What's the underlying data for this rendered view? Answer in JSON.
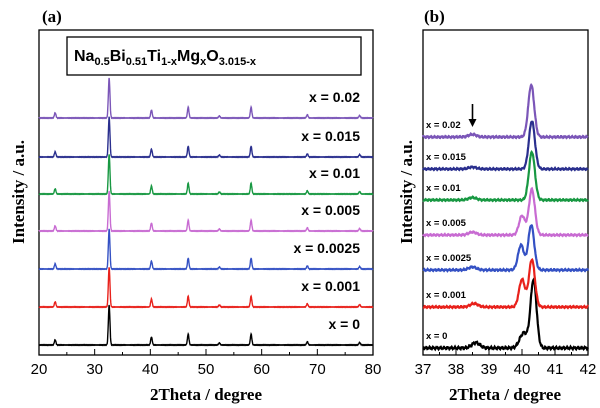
{
  "figure": {
    "formula": {
      "parts": [
        {
          "text": "Na",
          "sub": false
        },
        {
          "text": "0.5",
          "sub": true
        },
        {
          "text": "Bi",
          "sub": false
        },
        {
          "text": "0.51",
          "sub": true
        },
        {
          "text": "Ti",
          "sub": false
        },
        {
          "text": "1-x",
          "sub": true
        },
        {
          "text": "Mg",
          "sub": false
        },
        {
          "text": "x",
          "sub": true
        },
        {
          "text": "O",
          "sub": false
        },
        {
          "text": "3.015-x",
          "sub": true
        }
      ]
    }
  },
  "chart_data": [
    {
      "panel": "(a)",
      "type": "line",
      "xlabel": "2Theta / degree",
      "ylabel": "Intensity / a.u.",
      "xlim": [
        20,
        80
      ],
      "xticks": [
        20,
        30,
        40,
        50,
        60,
        70,
        80
      ],
      "y_ticks_shown": false,
      "grid": false,
      "baseline_profile": {
        "peaks": [
          {
            "position": 22.9,
            "rel_height": 0.13
          },
          {
            "position": 32.6,
            "rel_height": 1.0
          },
          {
            "position": 40.2,
            "rel_height": 0.2
          },
          {
            "position": 46.8,
            "rel_height": 0.27
          },
          {
            "position": 52.4,
            "rel_height": 0.05
          },
          {
            "position": 58.1,
            "rel_height": 0.27
          },
          {
            "position": 68.2,
            "rel_height": 0.08
          },
          {
            "position": 77.6,
            "rel_height": 0.06
          }
        ]
      },
      "series": [
        {
          "name": "x = 0",
          "color": "#000000"
        },
        {
          "name": "x = 0.001",
          "color": "#e8211b"
        },
        {
          "name": "x = 0.0025",
          "color": "#3451c4"
        },
        {
          "name": "x = 0.005",
          "color": "#c86bd2"
        },
        {
          "name": "x = 0.01",
          "color": "#189842"
        },
        {
          "name": "x = 0.015",
          "color": "#2a2f8e"
        },
        {
          "name": "x = 0.02",
          "color": "#7b56b8"
        }
      ]
    },
    {
      "panel": "(b)",
      "type": "line",
      "xlabel": "2Theta / degree",
      "ylabel": "Intensity / a.u.",
      "xlim": [
        37,
        42
      ],
      "xticks": [
        37,
        38,
        39,
        40,
        41,
        42
      ],
      "y_ticks_shown": false,
      "grid": false,
      "annotation": {
        "type": "arrow",
        "at_x": 38.5,
        "series": "x = 0.02"
      },
      "series": [
        {
          "name": "x = 0",
          "color": "#000000",
          "peaks": [
            {
              "position": 38.6,
              "rel_height": 0.08
            },
            {
              "position": 40.05,
              "rel_height": 0.22
            },
            {
              "position": 40.35,
              "rel_height": 1.0
            }
          ]
        },
        {
          "name": "x = 0.001",
          "color": "#e8211b",
          "peaks": [
            {
              "position": 38.55,
              "rel_height": 0.07
            },
            {
              "position": 40.0,
              "rel_height": 0.55
            },
            {
              "position": 40.3,
              "rel_height": 0.95
            }
          ]
        },
        {
          "name": "x = 0.0025",
          "color": "#3451c4",
          "peaks": [
            {
              "position": 38.5,
              "rel_height": 0.06
            },
            {
              "position": 39.97,
              "rel_height": 0.5
            },
            {
              "position": 40.28,
              "rel_height": 0.9
            }
          ]
        },
        {
          "name": "x = 0.005",
          "color": "#c86bd2",
          "peaks": [
            {
              "position": 38.5,
              "rel_height": 0.06
            },
            {
              "position": 40.0,
              "rel_height": 0.4
            },
            {
              "position": 40.3,
              "rel_height": 0.95
            }
          ]
        },
        {
          "name": "x = 0.01",
          "color": "#189842",
          "peaks": [
            {
              "position": 38.5,
              "rel_height": 0.05
            },
            {
              "position": 40.3,
              "rel_height": 1.0
            }
          ]
        },
        {
          "name": "x = 0.015",
          "color": "#2a2f8e",
          "peaks": [
            {
              "position": 38.5,
              "rel_height": 0.04
            },
            {
              "position": 40.3,
              "rel_height": 1.0
            }
          ]
        },
        {
          "name": "x = 0.02",
          "color": "#7b56b8",
          "peaks": [
            {
              "position": 38.5,
              "rel_height": 0.05
            },
            {
              "position": 40.28,
              "rel_height": 1.0
            }
          ]
        }
      ]
    }
  ]
}
